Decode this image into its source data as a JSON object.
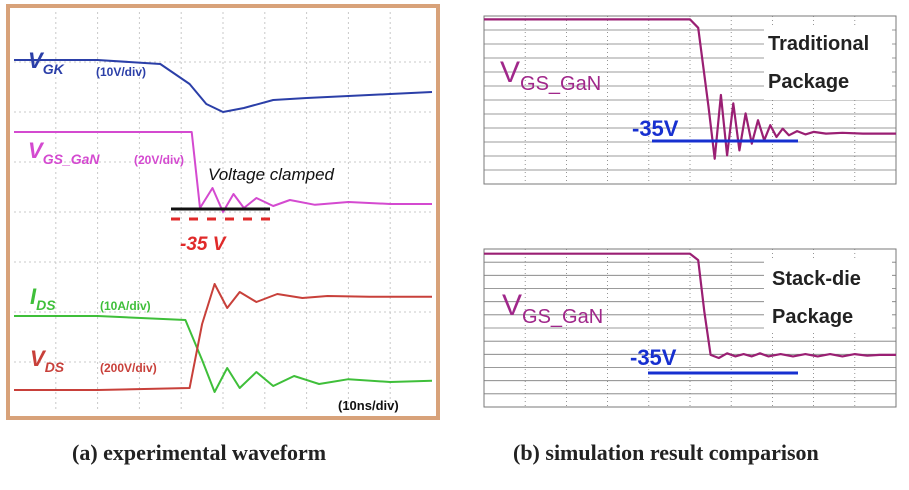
{
  "colors": {
    "frame": "#d8a27a",
    "grid": "#c9c9c9",
    "vgk": "#2b3fa8",
    "vgs": "#d44ad0",
    "ids": "#3fbf3a",
    "vds": "#c8403a",
    "red_label": "#e02a2a",
    "blue_label": "#1f2fc0",
    "sim_trace": "#9a1f73",
    "sim_label": "#a0278a",
    "sim_blue": "#1730d0",
    "sim_grid": "#7a7a7a"
  },
  "chart_data": [
    {
      "id": "experimental",
      "type": "line",
      "title": "",
      "x_scale": "(10ns/div)",
      "annotation": "Voltage clamped",
      "clamp_label": "-35 V",
      "x_range": [
        0,
        10
      ],
      "y_range": [
        0,
        10
      ],
      "series": [
        {
          "key": "vgk",
          "name": "V",
          "sub": "GK",
          "scale": "(10V/div)",
          "x": [
            0,
            2,
            3.5,
            4.2,
            4.6,
            5.0,
            5.5,
            6.2,
            7,
            8,
            9,
            10
          ],
          "y": [
            8.8,
            8.8,
            8.7,
            8.2,
            7.7,
            7.5,
            7.6,
            7.8,
            7.85,
            7.9,
            7.95,
            8.0
          ]
        },
        {
          "key": "vgs",
          "name": "V",
          "sub": "GS_GaN",
          "scale": "(20V/div)",
          "x": [
            0,
            2,
            4.25,
            4.45,
            4.75,
            5.0,
            5.25,
            5.5,
            5.8,
            6.2,
            6.6,
            7.2,
            8,
            9,
            10
          ],
          "y": [
            7.0,
            7.0,
            7.0,
            5.1,
            5.6,
            5.0,
            5.45,
            5.1,
            5.35,
            5.15,
            5.3,
            5.18,
            5.25,
            5.2,
            5.2
          ]
        },
        {
          "key": "ids",
          "name": "I",
          "sub": "DS",
          "scale": "(10A/div)",
          "x": [
            0,
            2,
            4.1,
            4.5,
            4.8,
            5.1,
            5.4,
            5.8,
            6.2,
            6.7,
            7.3,
            8,
            9,
            10
          ],
          "y": [
            2.4,
            2.4,
            2.3,
            1.3,
            0.5,
            1.1,
            0.6,
            1.0,
            0.65,
            0.9,
            0.7,
            0.82,
            0.75,
            0.78
          ]
        },
        {
          "key": "vds",
          "name": "V",
          "sub": "DS",
          "scale": "(200V/div)",
          "x": [
            0,
            2,
            4.2,
            4.5,
            4.8,
            5.1,
            5.4,
            5.8,
            6.3,
            6.9,
            7.5,
            8.5,
            10
          ],
          "y": [
            0.55,
            0.55,
            0.6,
            2.2,
            3.2,
            2.6,
            3.0,
            2.75,
            2.95,
            2.85,
            2.9,
            2.88,
            2.88
          ]
        }
      ]
    },
    {
      "id": "sim-traditional",
      "type": "line",
      "signal_name": "V",
      "signal_sub": "GS_GaN",
      "label_line1": "Traditional",
      "label_line2": "Package",
      "clamp_label": "-35V",
      "x_range": [
        0,
        10
      ],
      "y_range": [
        0,
        10
      ],
      "x": [
        0,
        5.0,
        5.2,
        5.45,
        5.6,
        5.75,
        5.9,
        6.05,
        6.2,
        6.35,
        6.5,
        6.65,
        6.8,
        6.95,
        7.1,
        7.25,
        7.4,
        7.6,
        7.8,
        8.0,
        8.3,
        8.7,
        9.2,
        10
      ],
      "y": [
        9.8,
        9.8,
        9.3,
        4.6,
        1.5,
        5.3,
        1.7,
        4.8,
        2.0,
        4.2,
        2.4,
        3.8,
        2.6,
        3.5,
        2.8,
        3.3,
        2.9,
        3.15,
        2.95,
        3.1,
        3.0,
        3.05,
        3.0,
        3.0
      ]
    },
    {
      "id": "sim-stackdie",
      "type": "line",
      "signal_name": "V",
      "signal_sub": "GS_GaN",
      "label_line1": "Stack-die",
      "label_line2": "Package",
      "clamp_label": "-35V",
      "x_range": [
        0,
        10
      ],
      "y_range": [
        0,
        10
      ],
      "x": [
        0,
        5.0,
        5.2,
        5.35,
        5.5,
        5.7,
        5.9,
        6.1,
        6.3,
        6.5,
        6.7,
        6.9,
        7.2,
        7.5,
        7.8,
        8.1,
        8.4,
        8.7,
        9.0,
        9.3,
        9.6,
        10
      ],
      "y": [
        9.7,
        9.7,
        9.3,
        6.0,
        3.3,
        3.1,
        3.4,
        3.2,
        3.35,
        3.2,
        3.4,
        3.2,
        3.35,
        3.2,
        3.35,
        3.2,
        3.35,
        3.2,
        3.35,
        3.25,
        3.3,
        3.3
      ]
    }
  ],
  "captions": {
    "a": "(a) experimental waveform",
    "b": "(b) simulation result comparison"
  }
}
